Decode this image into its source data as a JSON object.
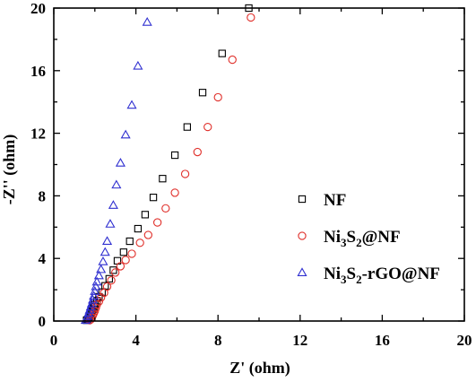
{
  "chart_data": {
    "type": "scatter",
    "title": "",
    "xlabel": "Z' (ohm)",
    "ylabel": "-Z'' (ohm)",
    "xlim": [
      0,
      20
    ],
    "ylim": [
      0,
      20
    ],
    "xticks": [
      "0",
      "4",
      "8",
      "12",
      "16",
      "20"
    ],
    "yticks": [
      "0",
      "4",
      "8",
      "12",
      "16",
      "20"
    ],
    "grid": false,
    "legend_position": "right",
    "series": [
      {
        "name": "NF",
        "legend_main": "NF",
        "legend_parts": [],
        "marker": "square",
        "color": "#000000",
        "x": [
          1.6,
          1.65,
          1.7,
          1.75,
          1.8,
          1.85,
          1.9,
          1.95,
          2.0,
          2.1,
          2.2,
          2.35,
          2.5,
          2.7,
          2.9,
          3.1,
          3.4,
          3.7,
          4.1,
          4.45,
          4.85,
          5.3,
          5.9,
          6.5,
          7.25,
          8.2,
          9.5
        ],
        "y": [
          0.05,
          0.1,
          0.2,
          0.3,
          0.45,
          0.6,
          0.75,
          0.9,
          1.05,
          1.3,
          1.55,
          1.85,
          2.25,
          2.7,
          3.25,
          3.85,
          4.4,
          5.1,
          5.9,
          6.8,
          7.9,
          9.1,
          10.6,
          12.4,
          14.6,
          17.1,
          20.0
        ]
      },
      {
        "name": "Ni3S2@NF",
        "legend_main": "Ni",
        "legend_parts": [
          [
            "3",
            "S"
          ],
          [
            "2",
            "@NF"
          ]
        ],
        "marker": "circle",
        "color": "#e0302b",
        "x": [
          1.75,
          1.8,
          1.85,
          1.9,
          1.95,
          2.0,
          2.05,
          2.1,
          2.2,
          2.3,
          2.45,
          2.6,
          2.8,
          3.0,
          3.25,
          3.5,
          3.8,
          4.2,
          4.6,
          5.05,
          5.45,
          5.9,
          6.4,
          7.0,
          7.5,
          8.0,
          8.7,
          9.6
        ],
        "y": [
          0.05,
          0.1,
          0.2,
          0.35,
          0.5,
          0.65,
          0.85,
          1.05,
          1.25,
          1.5,
          1.8,
          2.2,
          2.6,
          3.1,
          3.5,
          3.9,
          4.3,
          5.0,
          5.5,
          6.3,
          7.2,
          8.2,
          9.4,
          10.8,
          12.4,
          14.3,
          16.7,
          19.4
        ]
      },
      {
        "name": "Ni3S2-rGO@NF",
        "legend_main": "Ni",
        "legend_parts": [
          [
            "3",
            "S"
          ],
          [
            "2",
            "-rGO@NF"
          ]
        ],
        "marker": "triangle",
        "color": "#2f2fd0",
        "x": [
          1.55,
          1.6,
          1.65,
          1.7,
          1.75,
          1.8,
          1.85,
          1.9,
          1.95,
          2.0,
          2.05,
          2.1,
          2.2,
          2.3,
          2.4,
          2.5,
          2.6,
          2.75,
          2.9,
          3.05,
          3.25,
          3.5,
          3.8,
          4.1,
          4.55
        ],
        "y": [
          0.05,
          0.15,
          0.3,
          0.5,
          0.7,
          0.9,
          1.1,
          1.35,
          1.6,
          1.9,
          2.2,
          2.5,
          2.9,
          3.3,
          3.8,
          4.4,
          5.1,
          6.2,
          7.4,
          8.7,
          10.1,
          11.9,
          13.8,
          16.3,
          19.1
        ]
      }
    ]
  }
}
